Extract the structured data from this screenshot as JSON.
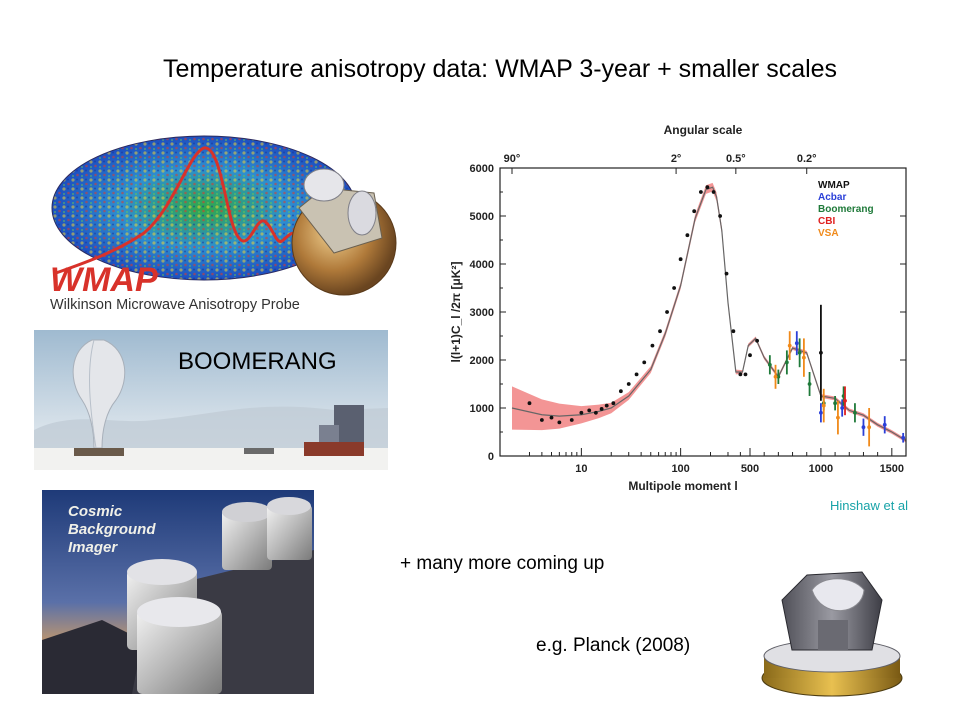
{
  "slide": {
    "title": "Temperature anisotropy data: WMAP 3-year + smaller scales",
    "boomerang_label": "BOOMERANG",
    "credit": "Hinshaw et al",
    "more_text": "+ many more coming up",
    "planck_text": "e.g. Planck (2008)"
  },
  "wmap_image": {
    "logo_text": "WMAP",
    "subtitle": "Wilkinson Microwave Anisotropy Probe",
    "logo_color": "#d8322a"
  },
  "cbi_image": {
    "line1": "Cosmic",
    "line2": "Background",
    "line3": "Imager"
  },
  "chart_data": {
    "type": "scatter",
    "top_axis_title": "Angular scale",
    "top_ticks": [
      {
        "label": "90°",
        "l": 2
      },
      {
        "label": "2°",
        "l": 90
      },
      {
        "label": "0.5°",
        "l": 360
      },
      {
        "label": "0.2°",
        "l": 900
      }
    ],
    "xlabel": "Multipole moment l",
    "ylabel": "l(l+1)C_l /2π [μK²]",
    "ylim": [
      0,
      6000
    ],
    "y_ticks": [
      0,
      1000,
      2000,
      3000,
      4000,
      5000,
      6000
    ],
    "x_scale": "log below l=500, linear above",
    "x_ticks": [
      {
        "label": "10",
        "l": 10
      },
      {
        "label": "100",
        "l": 100
      },
      {
        "label": "500",
        "l": 500
      },
      {
        "label": "1000",
        "l": 1000
      },
      {
        "label": "1500",
        "l": 1500
      }
    ],
    "legend_position": "top-right",
    "legend": [
      {
        "name": "WMAP",
        "color": "#111111"
      },
      {
        "name": "Acbar",
        "color": "#2a3fd8"
      },
      {
        "name": "Boomerang",
        "color": "#1f7a3a"
      },
      {
        "name": "CBI",
        "color": "#e02020"
      },
      {
        "name": "VSA",
        "color": "#f08a1a"
      }
    ],
    "model_curve": {
      "l": [
        2,
        4,
        6,
        10,
        15,
        20,
        30,
        50,
        70,
        100,
        140,
        180,
        210,
        230,
        260,
        300,
        360,
        420,
        480,
        540,
        600,
        700,
        800,
        900,
        1000,
        1100,
        1200,
        1300,
        1400,
        1500,
        1600
      ],
      "y": [
        1000,
        860,
        830,
        860,
        930,
        1000,
        1250,
        1800,
        2550,
        3550,
        4950,
        5550,
        5600,
        5400,
        4700,
        3200,
        1750,
        1750,
        2300,
        2450,
        2050,
        1650,
        2250,
        2150,
        1250,
        1200,
        950,
        850,
        650,
        500,
        320
      ],
      "band_halfwidth": [
        450,
        320,
        260,
        180,
        140,
        110,
        80,
        70,
        70,
        70,
        80,
        90,
        90,
        90,
        80,
        70,
        50,
        40,
        40,
        40,
        40,
        40,
        40,
        40,
        40,
        40,
        40,
        40,
        40,
        40,
        40
      ],
      "line_color": "#666666",
      "band_color": "#f28a8a"
    },
    "series": [
      {
        "name": "WMAP",
        "color": "#111111",
        "points": [
          [
            3,
            1100
          ],
          [
            4,
            750
          ],
          [
            5,
            800
          ],
          [
            6,
            700
          ],
          [
            8,
            750
          ],
          [
            10,
            900
          ],
          [
            12,
            950
          ],
          [
            14,
            900
          ],
          [
            16,
            980
          ],
          [
            18,
            1050
          ],
          [
            21,
            1100
          ],
          [
            25,
            1350
          ],
          [
            30,
            1500
          ],
          [
            36,
            1700
          ],
          [
            43,
            1950
          ],
          [
            52,
            2300
          ],
          [
            62,
            2600
          ],
          [
            73,
            3000
          ],
          [
            86,
            3500
          ],
          [
            100,
            4100
          ],
          [
            117,
            4600
          ],
          [
            137,
            5100
          ],
          [
            160,
            5500
          ],
          [
            186,
            5600
          ],
          [
            215,
            5500
          ],
          [
            250,
            5000
          ],
          [
            290,
            3800
          ],
          [
            340,
            2600
          ],
          [
            400,
            1700
          ],
          [
            450,
            1700
          ],
          [
            500,
            2100
          ],
          [
            550,
            2400
          ],
          [
            1000,
            2150
          ]
        ],
        "errors": [
          0,
          0,
          0,
          0,
          0,
          0,
          0,
          0,
          0,
          0,
          0,
          0,
          0,
          0,
          0,
          0,
          0,
          0,
          0,
          0,
          0,
          0,
          0,
          0,
          0,
          0,
          0,
          0,
          0,
          0,
          0,
          0,
          1000
        ]
      },
      {
        "name": "Acbar",
        "color": "#2a3fd8",
        "points": [
          [
            830,
            2350
          ],
          [
            1000,
            900
          ],
          [
            1150,
            1000
          ],
          [
            1300,
            600
          ],
          [
            1450,
            650
          ],
          [
            1580,
            380
          ]
        ],
        "errors": [
          250,
          200,
          180,
          180,
          180,
          100
        ]
      },
      {
        "name": "Boomerang",
        "color": "#1f7a3a",
        "points": [
          [
            640,
            1900
          ],
          [
            700,
            1650
          ],
          [
            760,
            1950
          ],
          [
            850,
            2150
          ],
          [
            920,
            1500
          ],
          [
            1020,
            1100
          ],
          [
            1100,
            1100
          ],
          [
            1160,
            1250
          ],
          [
            1240,
            900
          ]
        ],
        "errors": [
          200,
          150,
          250,
          300,
          250,
          150,
          150,
          200,
          200
        ]
      },
      {
        "name": "CBI",
        "color": "#e02020",
        "points": [
          [
            1170,
            1150
          ]
        ],
        "errors": [
          300
        ]
      },
      {
        "name": "VSA",
        "color": "#f08a1a",
        "points": [
          [
            680,
            1650
          ],
          [
            780,
            2300
          ],
          [
            880,
            2050
          ],
          [
            1020,
            1050
          ],
          [
            1120,
            800
          ],
          [
            1340,
            600
          ]
        ],
        "errors": [
          250,
          300,
          400,
          350,
          350,
          400
        ]
      }
    ]
  }
}
